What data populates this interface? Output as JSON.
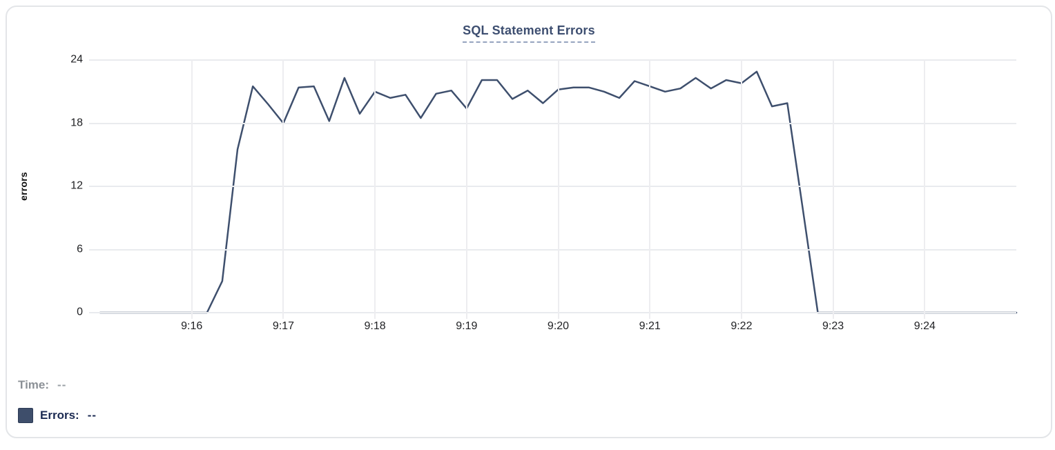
{
  "card": {
    "border_color": "#e3e5e8"
  },
  "legend": {
    "time_label": "Time:",
    "time_value": "--",
    "errors_label": "Errors:",
    "errors_value": "--",
    "swatch_color": "#3e4e6b"
  },
  "chart_data": {
    "type": "line",
    "title": "SQL Statement Errors",
    "xlabel": "",
    "ylabel": "errors",
    "ylim": [
      0,
      24
    ],
    "yticks": [
      0,
      6,
      12,
      18,
      24
    ],
    "xticks": [
      "9:16",
      "9:17",
      "9:18",
      "9:19",
      "9:20",
      "9:21",
      "9:22",
      "9:23",
      "9:24"
    ],
    "x_range_seconds": [
      0,
      600
    ],
    "x_start_time": "9:15:00",
    "x_end_time": "9:25:00",
    "grid": true,
    "legend_position": "bottom-left",
    "line_color": "#3e4f6d",
    "series": [
      {
        "name": "Errors",
        "sample_interval_seconds": 10,
        "points": [
          [
            "9:15:00",
            0
          ],
          [
            "9:15:10",
            0
          ],
          [
            "9:15:20",
            0
          ],
          [
            "9:15:30",
            0
          ],
          [
            "9:15:40",
            0
          ],
          [
            "9:15:50",
            0
          ],
          [
            "9:16:00",
            0
          ],
          [
            "9:16:10",
            0
          ],
          [
            "9:16:20",
            3
          ],
          [
            "9:16:30",
            15.5
          ],
          [
            "9:16:40",
            21.5
          ],
          [
            "9:16:50",
            19.8
          ],
          [
            "9:17:00",
            18
          ],
          [
            "9:17:10",
            21.4
          ],
          [
            "9:17:20",
            21.5
          ],
          [
            "9:17:30",
            18.2
          ],
          [
            "9:17:40",
            22.3
          ],
          [
            "9:17:50",
            18.9
          ],
          [
            "9:18:00",
            21
          ],
          [
            "9:18:10",
            20.4
          ],
          [
            "9:18:20",
            20.7
          ],
          [
            "9:18:30",
            18.5
          ],
          [
            "9:18:40",
            20.8
          ],
          [
            "9:18:50",
            21.1
          ],
          [
            "9:19:00",
            19.4
          ],
          [
            "9:19:10",
            22.1
          ],
          [
            "9:19:20",
            22.1
          ],
          [
            "9:19:30",
            20.3
          ],
          [
            "9:19:40",
            21.1
          ],
          [
            "9:19:50",
            19.9
          ],
          [
            "9:20:00",
            21.2
          ],
          [
            "9:20:10",
            21.4
          ],
          [
            "9:20:20",
            21.4
          ],
          [
            "9:20:30",
            21.0
          ],
          [
            "9:20:40",
            20.4
          ],
          [
            "9:20:50",
            22.0
          ],
          [
            "9:21:00",
            21.5
          ],
          [
            "9:21:10",
            21.0
          ],
          [
            "9:21:20",
            21.3
          ],
          [
            "9:21:30",
            22.3
          ],
          [
            "9:21:40",
            21.3
          ],
          [
            "9:21:50",
            22.1
          ],
          [
            "9:22:00",
            21.8
          ],
          [
            "9:22:10",
            22.9
          ],
          [
            "9:22:20",
            19.6
          ],
          [
            "9:22:30",
            19.9
          ],
          [
            "9:22:40",
            10
          ],
          [
            "9:22:50",
            0
          ],
          [
            "9:23:00",
            0
          ],
          [
            "9:23:10",
            0
          ],
          [
            "9:23:20",
            0
          ],
          [
            "9:23:30",
            0
          ],
          [
            "9:23:40",
            0
          ],
          [
            "9:23:50",
            0
          ],
          [
            "9:24:00",
            0
          ],
          [
            "9:24:10",
            0
          ],
          [
            "9:24:20",
            0
          ],
          [
            "9:24:30",
            0
          ],
          [
            "9:24:40",
            0
          ],
          [
            "9:24:50",
            0
          ],
          [
            "9:25:00",
            0
          ]
        ]
      }
    ]
  }
}
